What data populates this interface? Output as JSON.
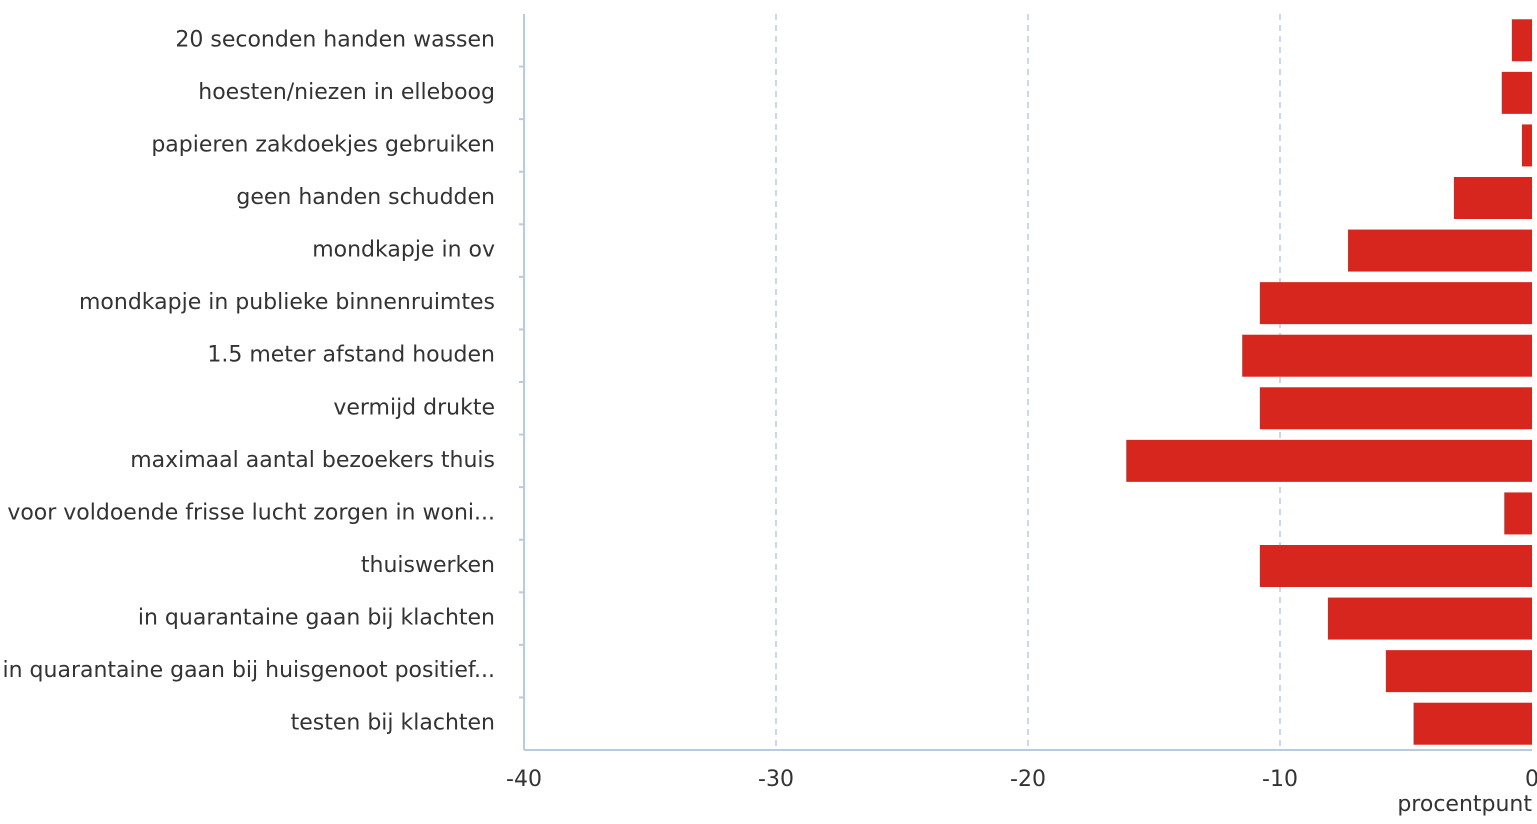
{
  "chart_data": {
    "type": "barh",
    "categories": [
      "20 seconden handen wassen",
      "hoesten/niezen in elleboog",
      "papieren zakdoekjes gebruiken",
      "geen handen schudden",
      "mondkapje in ov",
      "mondkapje in publieke binnenruimtes",
      "1.5 meter afstand houden",
      "vermijd drukte",
      "maximaal aantal bezoekers thuis",
      "voor voldoende frisse lucht zorgen in woni...",
      "thuiswerken",
      "in quarantaine gaan bij klachten",
      "in quarantaine gaan bij huisgenoot positief...",
      "testen bij klachten"
    ],
    "values": [
      -0.8,
      -1.2,
      -0.4,
      -3.1,
      -7.3,
      -10.8,
      -11.5,
      -10.8,
      -16.1,
      -1.1,
      -10.8,
      -8.1,
      -5.8,
      -4.7
    ],
    "color": "#d7261e",
    "xlim": [
      -40,
      0
    ],
    "xticks": [
      -40,
      -30,
      -20,
      -10,
      0
    ],
    "xlabel": "procentpunt",
    "grid": true
  }
}
